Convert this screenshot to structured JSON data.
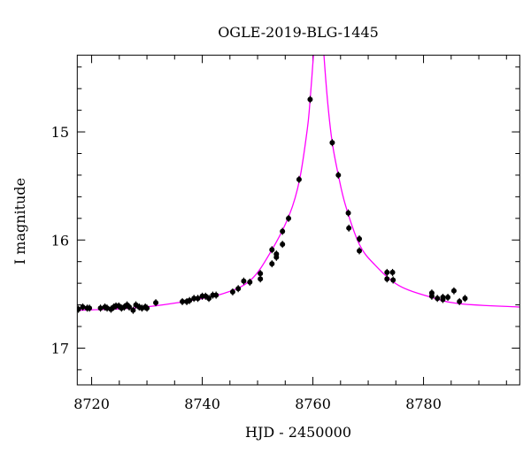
{
  "chart_data": {
    "type": "scatter",
    "title": "OGLE-2019-BLG-1445",
    "xlabel": "HJD - 2450000",
    "ylabel": "I magnitude",
    "xlim": [
      8717.4,
      8797.4
    ],
    "ylim": [
      17.34,
      14.29
    ],
    "y_inverted": true,
    "grid": false,
    "x_ticks": [
      8720,
      8740,
      8760,
      8780
    ],
    "x_tick_labels": [
      "8720",
      "8740",
      "8760",
      "8780"
    ],
    "y_ticks": [
      15,
      16,
      17
    ],
    "y_tick_labels": [
      "15",
      "16",
      "17"
    ],
    "colors": {
      "points": "#000000",
      "model": "#ff00ff"
    },
    "series": [
      {
        "kind": "points",
        "x": [
          8717.6,
          8718.4,
          8719.2,
          8719.6,
          8721.6,
          8722.4,
          8722.8,
          8723.5,
          8724.0,
          8724.4,
          8724.9,
          8725.4,
          8725.9,
          8726.4,
          8726.8,
          8727.5,
          8728.0,
          8728.6,
          8729.1,
          8729.7,
          8730.0,
          8731.6,
          8736.4,
          8737.2,
          8737.7,
          8738.5,
          8739.2,
          8740.0,
          8740.6,
          8741.2,
          8741.9,
          8742.5,
          8745.5,
          8746.5,
          8747.5,
          8748.6,
          8750.5,
          8750.5,
          8752.6,
          8752.6,
          8753.4,
          8753.4,
          8754.5,
          8754.5,
          8755.6,
          8757.5,
          8759.5,
          8763.5,
          8764.6,
          8766.4,
          8766.5,
          8768.4,
          8768.4,
          8773.4,
          8774.4,
          8773.4,
          8774.5,
          8781.5,
          8781.5,
          8782.5,
          8783.5,
          8783.5,
          8784.4,
          8785.5,
          8786.5,
          8787.5
        ],
        "y": [
          16.64,
          16.62,
          16.63,
          16.63,
          16.63,
          16.62,
          16.63,
          16.64,
          16.62,
          16.61,
          16.61,
          16.63,
          16.62,
          16.6,
          16.62,
          16.65,
          16.6,
          16.62,
          16.63,
          16.62,
          16.63,
          16.58,
          16.57,
          16.57,
          16.56,
          16.54,
          16.54,
          16.52,
          16.52,
          16.54,
          16.51,
          16.51,
          16.48,
          16.45,
          16.38,
          16.39,
          16.31,
          16.36,
          16.09,
          16.22,
          16.13,
          16.16,
          15.92,
          16.04,
          15.8,
          15.44,
          14.7,
          15.1,
          15.4,
          15.75,
          15.89,
          15.99,
          16.1,
          16.3,
          16.3,
          16.36,
          16.37,
          16.49,
          16.52,
          16.54,
          16.53,
          16.55,
          16.53,
          16.47,
          16.57,
          16.54
        ]
      },
      {
        "kind": "model-curve",
        "x": [
          8717.4,
          8727.5,
          8735.5,
          8743.5,
          8748.75,
          8752.6,
          8755.8,
          8757.6,
          8759.0,
          8759.5,
          8760.1,
          8760.4,
          8761.1,
          8761.7,
          8762.0,
          8762.7,
          8763.5,
          8764.6,
          8765.9,
          8768.4,
          8771.2,
          8775.5,
          8781.4,
          8786.7,
          8797.4
        ],
        "y": [
          16.65,
          16.63,
          16.58,
          16.5,
          16.37,
          16.09,
          15.76,
          15.44,
          14.97,
          14.7,
          14.29,
          14.0,
          13.6,
          14.0,
          14.29,
          14.74,
          15.1,
          15.4,
          15.68,
          16.04,
          16.23,
          16.42,
          16.53,
          16.59,
          16.62
        ]
      }
    ]
  }
}
